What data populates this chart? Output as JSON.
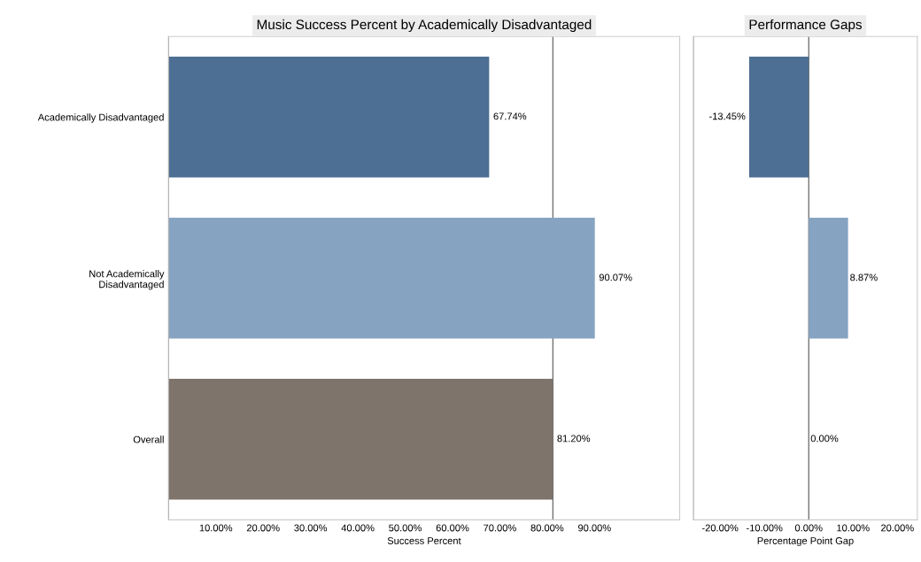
{
  "chart_data": [
    {
      "type": "bar",
      "orientation": "horizontal",
      "title": "Music Success Percent by Academically Disadvantaged",
      "xlabel": "Success Percent",
      "categories": [
        "Academically Disadvantaged",
        "Not Academically\nDisadvantaged",
        "Overall"
      ],
      "values": [
        67.74,
        90.07,
        81.2
      ],
      "colors": [
        "#4d6f94",
        "#86a4c2",
        "#7e746c"
      ],
      "value_labels": [
        "67.74%",
        "90.07%",
        "81.20%"
      ],
      "xlim": [
        0,
        108
      ],
      "xticks": [
        {
          "value": 10,
          "label": "10.00%"
        },
        {
          "value": 20,
          "label": "20.00%"
        },
        {
          "value": 30,
          "label": "30.00%"
        },
        {
          "value": 40,
          "label": "40.00%"
        },
        {
          "value": 50,
          "label": "50.00%"
        },
        {
          "value": 60,
          "label": "60.00%"
        },
        {
          "value": 70,
          "label": "70.00%"
        },
        {
          "value": 80,
          "label": "80.00%"
        },
        {
          "value": 90,
          "label": "90.00%"
        }
      ],
      "ref_lines": [
        {
          "axis": "x",
          "value": 81.2,
          "color": "#555555"
        }
      ],
      "grid": false
    },
    {
      "type": "bar",
      "orientation": "horizontal",
      "title": "Performance Gaps",
      "xlabel": "Percentage Point Gap",
      "categories": [
        null,
        null,
        null
      ],
      "values": [
        -13.45,
        8.87,
        0.0
      ],
      "colors": [
        "#4d6f94",
        "#86a4c2",
        "#7e746c"
      ],
      "value_labels": [
        "-13.45%",
        "8.87%",
        "0.00%"
      ],
      "xlim": [
        -26,
        24.5
      ],
      "xticks": [
        {
          "value": -20,
          "label": "-20.00%"
        },
        {
          "value": -10,
          "label": "-10.00%"
        },
        {
          "value": 0,
          "label": "0.00%"
        },
        {
          "value": 10,
          "label": "10.00%"
        },
        {
          "value": 20,
          "label": "20.00%"
        }
      ],
      "ref_lines": [
        {
          "axis": "x",
          "value": 0,
          "color": "#555555"
        }
      ],
      "tick_labels": "x",
      "grid": false
    }
  ]
}
